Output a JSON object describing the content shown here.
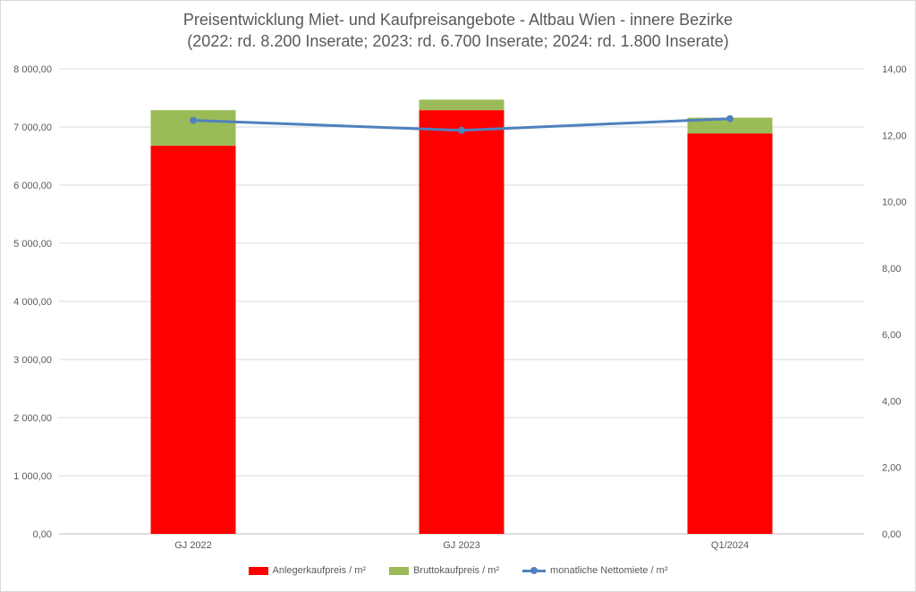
{
  "chart_data": {
    "type": "bar",
    "title_line1": "Preisentwicklung Miet- und Kaufpreisangebote - Altbau Wien - innere Bezirke",
    "title_line2": "(2022: rd. 8.200 Inserate; 2023: rd. 6.700 Inserate; 2024: rd. 1.800 Inserate)",
    "categories": [
      "GJ 2022",
      "GJ 2023",
      "Q1/2024"
    ],
    "series": [
      {
        "name": "Anlegerkaufpreis / m²",
        "kind": "bar-stacked",
        "axis": "left",
        "color": "#ff0000",
        "values": [
          6680,
          7290,
          6890
        ]
      },
      {
        "name": "Bruttokaufpreis / m²",
        "kind": "bar-stacked",
        "axis": "left",
        "color": "#9bbb59",
        "values": [
          610,
          180,
          270
        ]
      },
      {
        "name": "monatliche Nettomiete / m²",
        "kind": "line",
        "axis": "right",
        "color": "#4f81bd",
        "values": [
          12.45,
          12.15,
          12.5
        ]
      }
    ],
    "y_left": {
      "min": 0,
      "max": 8000,
      "step": 1000,
      "tick_labels": [
        "0,00",
        "1 000,00",
        "2 000,00",
        "3 000,00",
        "4 000,00",
        "5 000,00",
        "6 000,00",
        "7 000,00",
        "8 000,00"
      ]
    },
    "y_right": {
      "min": 0,
      "max": 14,
      "step": 2,
      "tick_labels": [
        "0,00",
        "2,00",
        "4,00",
        "6,00",
        "8,00",
        "10,00",
        "12,00",
        "14,00"
      ]
    },
    "grid": true,
    "legend_position": "bottom"
  }
}
